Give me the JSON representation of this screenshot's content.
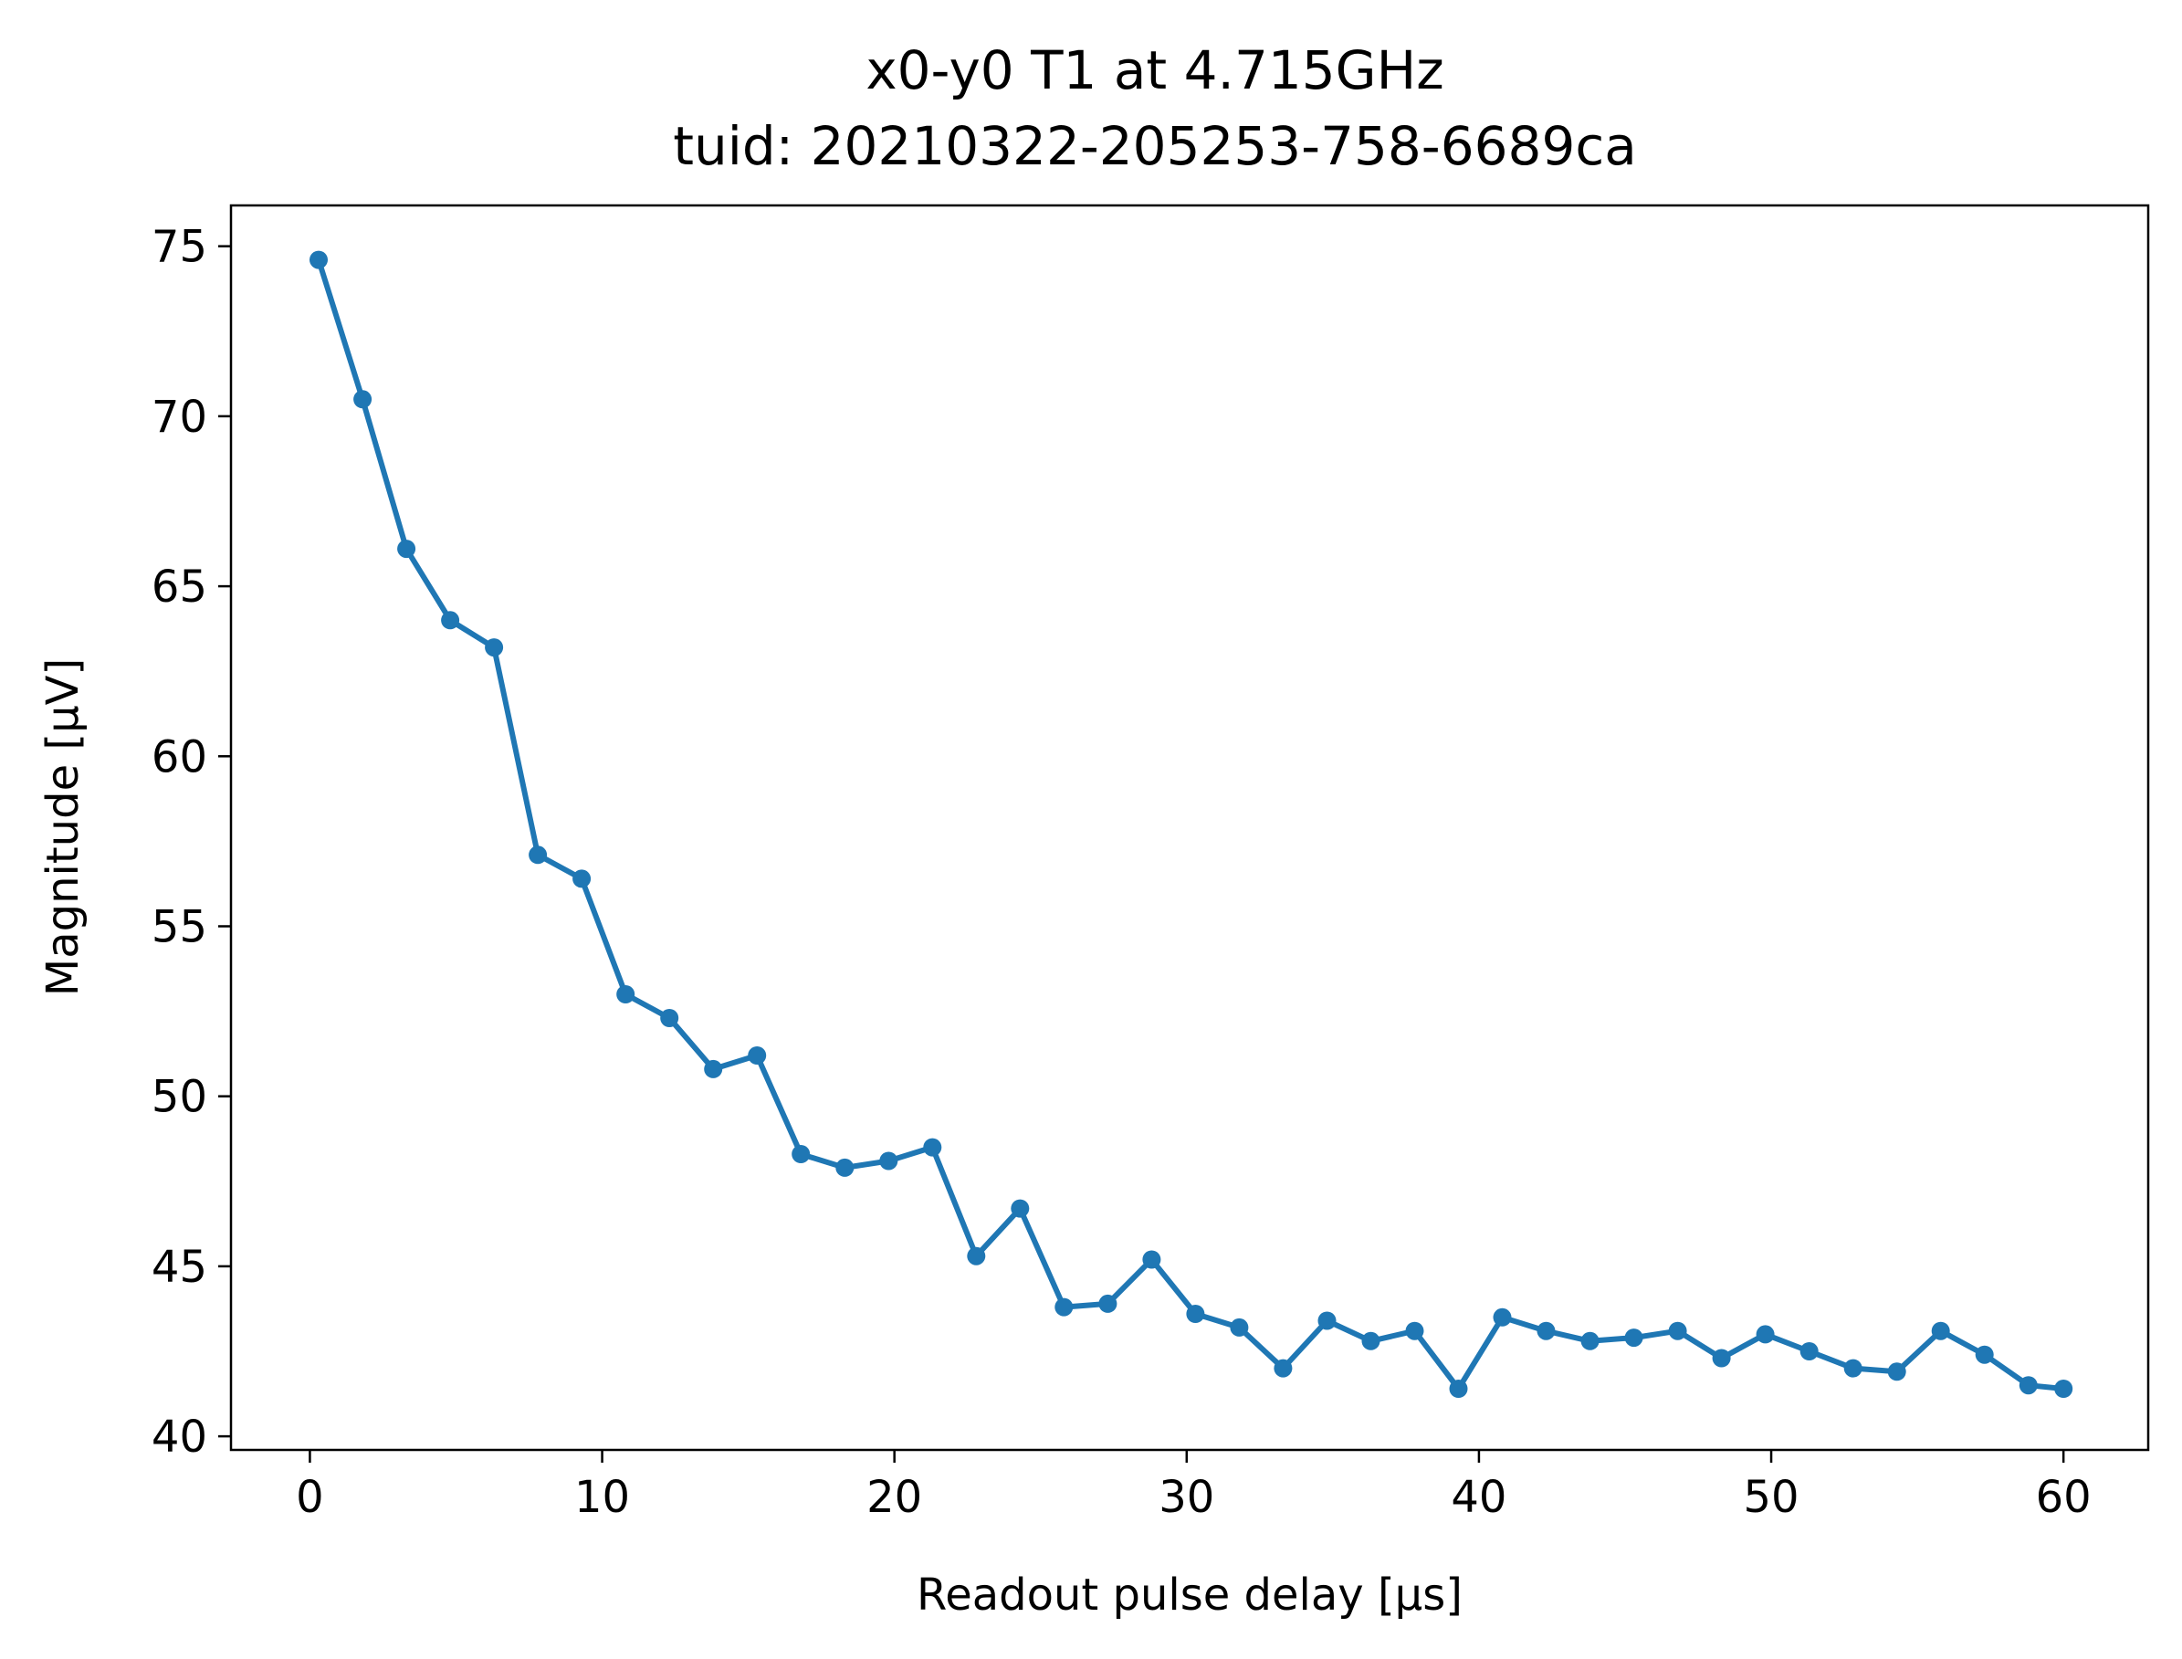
{
  "chart_data": {
    "type": "line",
    "title": "x0-y0 T1 at 4.715GHz",
    "subtitle": "tuid: 20210322-205253-758-6689ca",
    "xlabel": "Readout pulse delay [µs]",
    "ylabel": "Magnitude [µV]",
    "xlim": [
      -2.7,
      62.9
    ],
    "ylim": [
      39.6,
      76.2
    ],
    "xticks": [
      0,
      10,
      20,
      30,
      40,
      50,
      60
    ],
    "yticks": [
      40,
      45,
      50,
      55,
      60,
      65,
      70,
      75
    ],
    "grid": false,
    "color": "#1f77b4",
    "marker": "circle",
    "series": [
      {
        "x": [
          0.3,
          1.8,
          3.3,
          4.8,
          6.3,
          7.8,
          9.3,
          10.8,
          12.3,
          13.8,
          15.3,
          16.8,
          18.3,
          19.8,
          21.3,
          22.8,
          24.3,
          25.8,
          27.3,
          28.8,
          30.3,
          31.8,
          33.3,
          34.8,
          36.3,
          37.8,
          39.3,
          40.8,
          42.3,
          43.8,
          45.3,
          46.8,
          48.3,
          49.8,
          51.3,
          52.8,
          54.3,
          55.8,
          57.3,
          58.8,
          60.0
        ],
        "values": [
          74.6,
          70.5,
          66.1,
          64.0,
          63.2,
          57.1,
          56.4,
          53.0,
          52.3,
          50.8,
          51.2,
          48.3,
          47.9,
          48.1,
          48.5,
          45.3,
          46.7,
          43.8,
          43.9,
          45.2,
          43.6,
          43.2,
          42.0,
          43.4,
          42.8,
          43.1,
          41.4,
          43.5,
          43.1,
          42.8,
          42.9,
          43.1,
          42.3,
          43.0,
          42.5,
          42.0,
          41.9,
          43.1,
          42.4,
          41.5,
          41.4
        ]
      }
    ]
  }
}
